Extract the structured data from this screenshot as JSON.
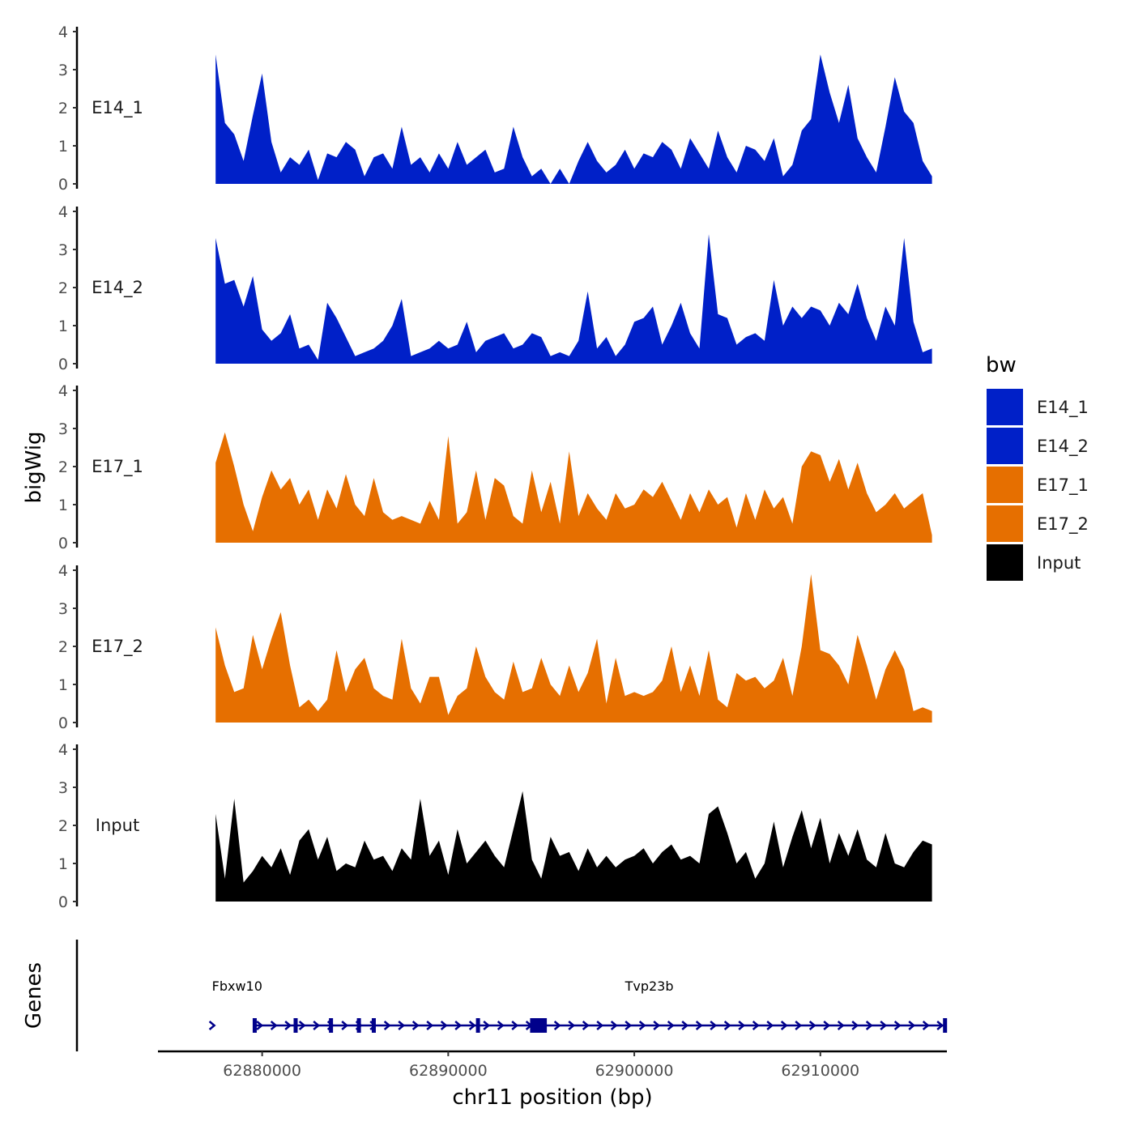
{
  "chart_data": {
    "type": "area",
    "x_range": [
      62874400,
      62916800
    ],
    "x_ticks": [
      62880000,
      62890000,
      62900000,
      62910000
    ],
    "x_tick_labels": [
      "62880000",
      "62890000",
      "62900000",
      "62910000"
    ],
    "xlabel": "chr11 position (bp)",
    "ylabel": "bigWig",
    "ylim": [
      0,
      4
    ],
    "y_ticks": [
      0,
      1,
      2,
      3,
      4
    ],
    "y_tick_labels": [
      "0",
      "1",
      "2",
      "3",
      "4"
    ],
    "series": [
      {
        "name": "E14_1",
        "color": "#0020c8",
        "x": [
          62877500,
          62878000,
          62878500,
          62879000,
          62879500,
          62880000,
          62880500,
          62881000,
          62881500,
          62882000,
          62882500,
          62883000,
          62883500,
          62884000,
          62884500,
          62885000,
          62885500,
          62886000,
          62886500,
          62887000,
          62887500,
          62888000,
          62888500,
          62889000,
          62889500,
          62890000,
          62890500,
          62891000,
          62891500,
          62892000,
          62892500,
          62893000,
          62893500,
          62894000,
          62894500,
          62895000,
          62895500,
          62896000,
          62896500,
          62897000,
          62897500,
          62898000,
          62898500,
          62899000,
          62899500,
          62900000,
          62900500,
          62901000,
          62901500,
          62902000,
          62902500,
          62903000,
          62903500,
          62904000,
          62904500,
          62905000,
          62905500,
          62906000,
          62906500,
          62907000,
          62907500,
          62908000,
          62908500,
          62909000,
          62909500,
          62910000,
          62910500,
          62911000,
          62911500,
          62912000,
          62912500,
          62913000,
          62913500,
          62914000,
          62914500,
          62915000,
          62915500,
          62916000
        ],
        "values": [
          3.4,
          1.6,
          1.3,
          0.6,
          1.8,
          2.9,
          1.1,
          0.3,
          0.7,
          0.5,
          0.9,
          0.1,
          0.8,
          0.7,
          1.1,
          0.9,
          0.2,
          0.7,
          0.8,
          0.4,
          1.5,
          0.5,
          0.7,
          0.3,
          0.8,
          0.4,
          1.1,
          0.5,
          0.7,
          0.9,
          0.3,
          0.4,
          1.5,
          0.7,
          0.2,
          0.4,
          0.0,
          0.4,
          0.0,
          0.6,
          1.1,
          0.6,
          0.3,
          0.5,
          0.9,
          0.4,
          0.8,
          0.7,
          1.1,
          0.9,
          0.4,
          1.2,
          0.8,
          0.4,
          1.4,
          0.7,
          0.3,
          1.0,
          0.9,
          0.6,
          1.2,
          0.2,
          0.5,
          1.4,
          1.7,
          3.4,
          2.4,
          1.6,
          2.6,
          1.2,
          0.7,
          0.3,
          1.5,
          2.8,
          1.9,
          1.6,
          0.6,
          0.2
        ],
        "label": "E14_1"
      },
      {
        "name": "E14_2",
        "color": "#0020c8",
        "x": [
          62877500,
          62878000,
          62878500,
          62879000,
          62879500,
          62880000,
          62880500,
          62881000,
          62881500,
          62882000,
          62882500,
          62883000,
          62883500,
          62884000,
          62884500,
          62885000,
          62885500,
          62886000,
          62886500,
          62887000,
          62887500,
          62888000,
          62888500,
          62889000,
          62889500,
          62890000,
          62890500,
          62891000,
          62891500,
          62892000,
          62892500,
          62893000,
          62893500,
          62894000,
          62894500,
          62895000,
          62895500,
          62896000,
          62896500,
          62897000,
          62897500,
          62898000,
          62898500,
          62899000,
          62899500,
          62900000,
          62900500,
          62901000,
          62901500,
          62902000,
          62902500,
          62903000,
          62903500,
          62904000,
          62904500,
          62905000,
          62905500,
          62906000,
          62906500,
          62907000,
          62907500,
          62908000,
          62908500,
          62909000,
          62909500,
          62910000,
          62910500,
          62911000,
          62911500,
          62912000,
          62912500,
          62913000,
          62913500,
          62914000,
          62914500,
          62915000,
          62915500,
          62916000
        ],
        "values": [
          3.3,
          2.1,
          2.2,
          1.5,
          2.3,
          0.9,
          0.6,
          0.8,
          1.3,
          0.4,
          0.5,
          0.1,
          1.6,
          1.2,
          0.7,
          0.2,
          0.3,
          0.4,
          0.6,
          1.0,
          1.7,
          0.2,
          0.3,
          0.4,
          0.6,
          0.4,
          0.5,
          1.1,
          0.3,
          0.6,
          0.7,
          0.8,
          0.4,
          0.5,
          0.8,
          0.7,
          0.2,
          0.3,
          0.2,
          0.6,
          1.9,
          0.4,
          0.7,
          0.2,
          0.5,
          1.1,
          1.2,
          1.5,
          0.5,
          1.0,
          1.6,
          0.8,
          0.4,
          3.4,
          1.3,
          1.2,
          0.5,
          0.7,
          0.8,
          0.6,
          2.2,
          1.0,
          1.5,
          1.2,
          1.5,
          1.4,
          1.0,
          1.6,
          1.3,
          2.1,
          1.2,
          0.6,
          1.5,
          1.0,
          3.3,
          1.1,
          0.3,
          0.4
        ],
        "label": "E14_2"
      },
      {
        "name": "E17_1",
        "color": "#e66f00",
        "x": [
          62877500,
          62878000,
          62878500,
          62879000,
          62879500,
          62880000,
          62880500,
          62881000,
          62881500,
          62882000,
          62882500,
          62883000,
          62883500,
          62884000,
          62884500,
          62885000,
          62885500,
          62886000,
          62886500,
          62887000,
          62887500,
          62888000,
          62888500,
          62889000,
          62889500,
          62890000,
          62890500,
          62891000,
          62891500,
          62892000,
          62892500,
          62893000,
          62893500,
          62894000,
          62894500,
          62895000,
          62895500,
          62896000,
          62896500,
          62897000,
          62897500,
          62898000,
          62898500,
          62899000,
          62899500,
          62900000,
          62900500,
          62901000,
          62901500,
          62902000,
          62902500,
          62903000,
          62903500,
          62904000,
          62904500,
          62905000,
          62905500,
          62906000,
          62906500,
          62907000,
          62907500,
          62908000,
          62908500,
          62909000,
          62909500,
          62910000,
          62910500,
          62911000,
          62911500,
          62912000,
          62912500,
          62913000,
          62913500,
          62914000,
          62914500,
          62915000,
          62915500,
          62916000
        ],
        "values": [
          2.1,
          2.9,
          2.0,
          1.0,
          0.3,
          1.2,
          1.9,
          1.4,
          1.7,
          1.0,
          1.4,
          0.6,
          1.4,
          0.9,
          1.8,
          1.0,
          0.7,
          1.7,
          0.8,
          0.6,
          0.7,
          0.6,
          0.5,
          1.1,
          0.6,
          2.8,
          0.5,
          0.8,
          1.9,
          0.6,
          1.7,
          1.5,
          0.7,
          0.5,
          1.9,
          0.8,
          1.6,
          0.5,
          2.4,
          0.7,
          1.3,
          0.9,
          0.6,
          1.3,
          0.9,
          1.0,
          1.4,
          1.2,
          1.6,
          1.1,
          0.6,
          1.3,
          0.8,
          1.4,
          1.0,
          1.2,
          0.4,
          1.3,
          0.6,
          1.4,
          0.9,
          1.2,
          0.5,
          2.0,
          2.4,
          2.3,
          1.6,
          2.2,
          1.4,
          2.1,
          1.3,
          0.8,
          1.0,
          1.3,
          0.9,
          1.1,
          1.3,
          0.2
        ],
        "label": "E17_1"
      },
      {
        "name": "E17_2",
        "color": "#e66f00",
        "x": [
          62877500,
          62878000,
          62878500,
          62879000,
          62879500,
          62880000,
          62880500,
          62881000,
          62881500,
          62882000,
          62882500,
          62883000,
          62883500,
          62884000,
          62884500,
          62885000,
          62885500,
          62886000,
          62886500,
          62887000,
          62887500,
          62888000,
          62888500,
          62889000,
          62889500,
          62890000,
          62890500,
          62891000,
          62891500,
          62892000,
          62892500,
          62893000,
          62893500,
          62894000,
          62894500,
          62895000,
          62895500,
          62896000,
          62896500,
          62897000,
          62897500,
          62898000,
          62898500,
          62899000,
          62899500,
          62900000,
          62900500,
          62901000,
          62901500,
          62902000,
          62902500,
          62903000,
          62903500,
          62904000,
          62904500,
          62905000,
          62905500,
          62906000,
          62906500,
          62907000,
          62907500,
          62908000,
          62908500,
          62909000,
          62909500,
          62910000,
          62910500,
          62911000,
          62911500,
          62912000,
          62912500,
          62913000,
          62913500,
          62914000,
          62914500,
          62915000,
          62915500,
          62916000
        ],
        "values": [
          2.5,
          1.5,
          0.8,
          0.9,
          2.3,
          1.4,
          2.2,
          2.9,
          1.5,
          0.4,
          0.6,
          0.3,
          0.6,
          1.9,
          0.8,
          1.4,
          1.7,
          0.9,
          0.7,
          0.6,
          2.2,
          0.9,
          0.5,
          1.2,
          1.2,
          0.2,
          0.7,
          0.9,
          2.0,
          1.2,
          0.8,
          0.6,
          1.6,
          0.8,
          0.9,
          1.7,
          1.0,
          0.7,
          1.5,
          0.8,
          1.3,
          2.2,
          0.5,
          1.7,
          0.7,
          0.8,
          0.7,
          0.8,
          1.1,
          2.0,
          0.8,
          1.5,
          0.7,
          1.9,
          0.6,
          0.4,
          1.3,
          1.1,
          1.2,
          0.9,
          1.1,
          1.7,
          0.7,
          2.0,
          3.9,
          1.9,
          1.8,
          1.5,
          1.0,
          2.3,
          1.5,
          0.6,
          1.4,
          1.9,
          1.4,
          0.3,
          0.4,
          0.3
        ],
        "label": "E17_2"
      },
      {
        "name": "Input",
        "color": "#000000",
        "x": [
          62877500,
          62878000,
          62878500,
          62879000,
          62879500,
          62880000,
          62880500,
          62881000,
          62881500,
          62882000,
          62882500,
          62883000,
          62883500,
          62884000,
          62884500,
          62885000,
          62885500,
          62886000,
          62886500,
          62887000,
          62887500,
          62888000,
          62888500,
          62889000,
          62889500,
          62890000,
          62890500,
          62891000,
          62891500,
          62892000,
          62892500,
          62893000,
          62893500,
          62894000,
          62894500,
          62895000,
          62895500,
          62896000,
          62896500,
          62897000,
          62897500,
          62898000,
          62898500,
          62899000,
          62899500,
          62900000,
          62900500,
          62901000,
          62901500,
          62902000,
          62902500,
          62903000,
          62903500,
          62904000,
          62904500,
          62905000,
          62905500,
          62906000,
          62906500,
          62907000,
          62907500,
          62908000,
          62908500,
          62909000,
          62909500,
          62910000,
          62910500,
          62911000,
          62911500,
          62912000,
          62912500,
          62913000,
          62913500,
          62914000,
          62914500,
          62915000,
          62915500,
          62916000
        ],
        "values": [
          2.3,
          0.6,
          2.7,
          0.5,
          0.8,
          1.2,
          0.9,
          1.4,
          0.7,
          1.6,
          1.9,
          1.1,
          1.7,
          0.8,
          1.0,
          0.9,
          1.6,
          1.1,
          1.2,
          0.8,
          1.4,
          1.1,
          2.7,
          1.2,
          1.6,
          0.7,
          1.9,
          1.0,
          1.3,
          1.6,
          1.2,
          0.9,
          1.9,
          2.9,
          1.1,
          0.6,
          1.7,
          1.2,
          1.3,
          0.8,
          1.4,
          0.9,
          1.2,
          0.9,
          1.1,
          1.2,
          1.4,
          1.0,
          1.3,
          1.5,
          1.1,
          1.2,
          1.0,
          2.3,
          2.5,
          1.8,
          1.0,
          1.3,
          0.6,
          1.0,
          2.1,
          0.9,
          1.7,
          2.4,
          1.4,
          2.2,
          1.0,
          1.8,
          1.2,
          1.9,
          1.1,
          0.9,
          1.8,
          1.0,
          0.9,
          1.3,
          1.6,
          1.5
        ],
        "label": "Input"
      }
    ],
    "legend": {
      "title": "bw",
      "position": "right",
      "entries": [
        {
          "label": "E14_1",
          "color": "#0020c8"
        },
        {
          "label": "E14_2",
          "color": "#0020c8"
        },
        {
          "label": "E17_1",
          "color": "#e66f00"
        },
        {
          "label": "E17_2",
          "color": "#e66f00"
        },
        {
          "label": "Input",
          "color": "#000000"
        }
      ]
    },
    "genes": {
      "panel_label": "Genes",
      "color": "#00008b",
      "labels": [
        {
          "name": "Fbxw10",
          "x": 62877300
        },
        {
          "name": "Tvp23b",
          "x": 62899500
        }
      ],
      "segments": [
        {
          "start": 62877300,
          "end": 62877500
        },
        {
          "start": 62879500,
          "end": 62916700
        }
      ],
      "exons": [
        62879600,
        62881800,
        62883700,
        62885200,
        62886000,
        62891600,
        62916700
      ],
      "large_exon": {
        "start": 62894400,
        "end": 62895300
      }
    }
  }
}
